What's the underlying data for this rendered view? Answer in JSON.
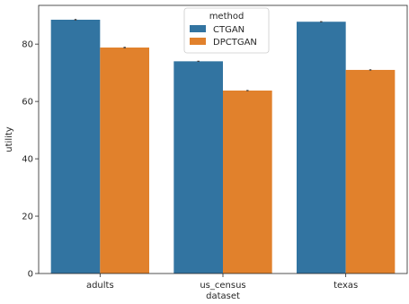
{
  "chart_data": {
    "type": "bar",
    "categories": [
      "adults",
      "us_census",
      "texas"
    ],
    "series": [
      {
        "name": "CTGAN",
        "values": [
          88.5,
          74.0,
          87.8
        ],
        "errors": [
          0.25,
          0.2,
          0.2
        ],
        "color": "#3274a1"
      },
      {
        "name": "DPCTGAN",
        "values": [
          78.8,
          63.8,
          71.0
        ],
        "errors": [
          0.25,
          0.2,
          0.2
        ],
        "color": "#e1812c"
      }
    ],
    "xlabel": "dataset",
    "ylabel": "utility",
    "ylim": [
      0,
      93.5
    ],
    "yticks": [
      0,
      20,
      40,
      60,
      80
    ],
    "legend": {
      "title": "method",
      "placement": "top-center"
    },
    "grid": false
  }
}
